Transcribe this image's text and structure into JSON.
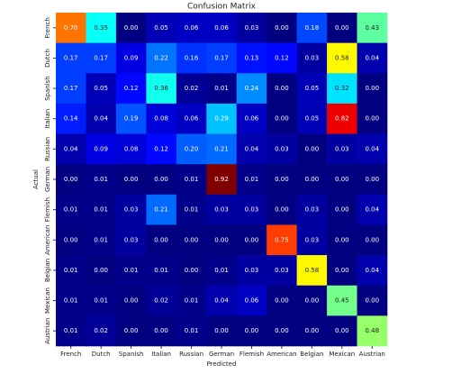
{
  "chart_data": {
    "type": "heatmap",
    "title": "Confusion Matrix",
    "x_label": "Predicted",
    "y_label": "Actual",
    "colormap": "jet",
    "zlim": [
      0,
      0.92
    ],
    "x_categories": [
      "French",
      "Dutch",
      "Spanish",
      "Italian",
      "Russian",
      "German",
      "Flemish",
      "American",
      "Belgian",
      "Mexican",
      "Austrian"
    ],
    "y_categories": [
      "French",
      "Dutch",
      "Spanish",
      "Italian",
      "Russian",
      "German",
      "Flemish",
      "American",
      "Belgian",
      "Mexican",
      "Austrian"
    ],
    "values": [
      [
        0.7,
        0.35,
        0,
        0.05,
        0.06,
        0.06,
        0.03,
        0,
        0.18,
        0,
        0.43
      ],
      [
        0.17,
        0.17,
        0.09,
        0.22,
        0.16,
        0.17,
        0.13,
        0.12,
        0.03,
        0.58,
        0.04
      ],
      [
        0.17,
        0.05,
        0.12,
        0.36,
        0.02,
        0.01,
        0.24,
        0,
        0.05,
        0.32,
        0
      ],
      [
        0.14,
        0.04,
        0.19,
        0.08,
        0.06,
        0.29,
        0.06,
        0,
        0.05,
        0.82,
        0
      ],
      [
        0.04,
        0.09,
        0.08,
        0.12,
        0.2,
        0.21,
        0.04,
        0.03,
        0,
        0.03,
        0.04
      ],
      [
        0,
        0.01,
        0,
        0,
        0.01,
        0.92,
        0.01,
        0,
        0,
        0,
        0
      ],
      [
        0.01,
        0.01,
        0.03,
        0.21,
        0.01,
        0.03,
        0.03,
        0,
        0.03,
        0,
        0.04
      ],
      [
        0,
        0.01,
        0.03,
        0,
        0,
        0,
        0,
        0.75,
        0.03,
        0,
        0
      ],
      [
        0.01,
        0,
        0.01,
        0.01,
        0,
        0.01,
        0.03,
        0.03,
        0.58,
        0,
        0.04
      ],
      [
        0.01,
        0.01,
        0,
        0.02,
        0.01,
        0.04,
        0.06,
        0,
        0,
        0.45,
        0
      ],
      [
        0.01,
        0.02,
        0,
        0,
        0.01,
        0,
        0,
        0,
        0,
        0,
        0.48
      ]
    ],
    "value_labels": [
      [
        "0.70",
        "0.35",
        "0.00",
        "0.05",
        "0.06",
        "0.06",
        "0.03",
        "0.00",
        "0.18",
        "0.00",
        "0.43"
      ],
      [
        "0.17",
        "0.17",
        "0.09",
        "0.22",
        "0.16",
        "0.17",
        "0.13",
        "0.12",
        "0.03",
        "0.58",
        "0.04"
      ],
      [
        "0.17",
        "0.05",
        "0.12",
        "0.36",
        "0.02",
        "0.01",
        "0.24",
        "0.00",
        "0.05",
        "0.32",
        "0.00"
      ],
      [
        "0.14",
        "0.04",
        "0.19",
        "0.08",
        "0.06",
        "0.29",
        "0.06",
        "0.00",
        "0.05",
        "0.82",
        "0.00"
      ],
      [
        "0.04",
        "0.09",
        "0.08",
        "0.12",
        "0.20",
        "0.21",
        "0.04",
        "0.03",
        "0.00",
        "0.03",
        "0.04"
      ],
      [
        "0.00",
        "0.01",
        "0.00",
        "0.00",
        "0.01",
        "0.92",
        "0.01",
        "0.00",
        "0.00",
        "0.00",
        "0.00"
      ],
      [
        "0.01",
        "0.01",
        "0.03",
        "0.21",
        "0.01",
        "0.03",
        "0.03",
        "0.00",
        "0.03",
        "0.00",
        "0.04"
      ],
      [
        "0.00",
        "0.01",
        "0.03",
        "0.00",
        "0.00",
        "0.00",
        "0.00",
        "0.75",
        "0.03",
        "0.00",
        "0.00"
      ],
      [
        "0.01",
        "0.00",
        "0.01",
        "0.01",
        "0.00",
        "0.01",
        "0.03",
        "0.03",
        "0.58",
        "0.00",
        "0.04"
      ],
      [
        "0.01",
        "0.01",
        "0.00",
        "0.02",
        "0.01",
        "0.04",
        "0.06",
        "0.00",
        "0.00",
        "0.45",
        "0.00"
      ],
      [
        "0.01",
        "0.02",
        "0.00",
        "0.00",
        "0.01",
        "0.00",
        "0.00",
        "0.00",
        "0.00",
        "0.00",
        "0.48"
      ]
    ]
  }
}
